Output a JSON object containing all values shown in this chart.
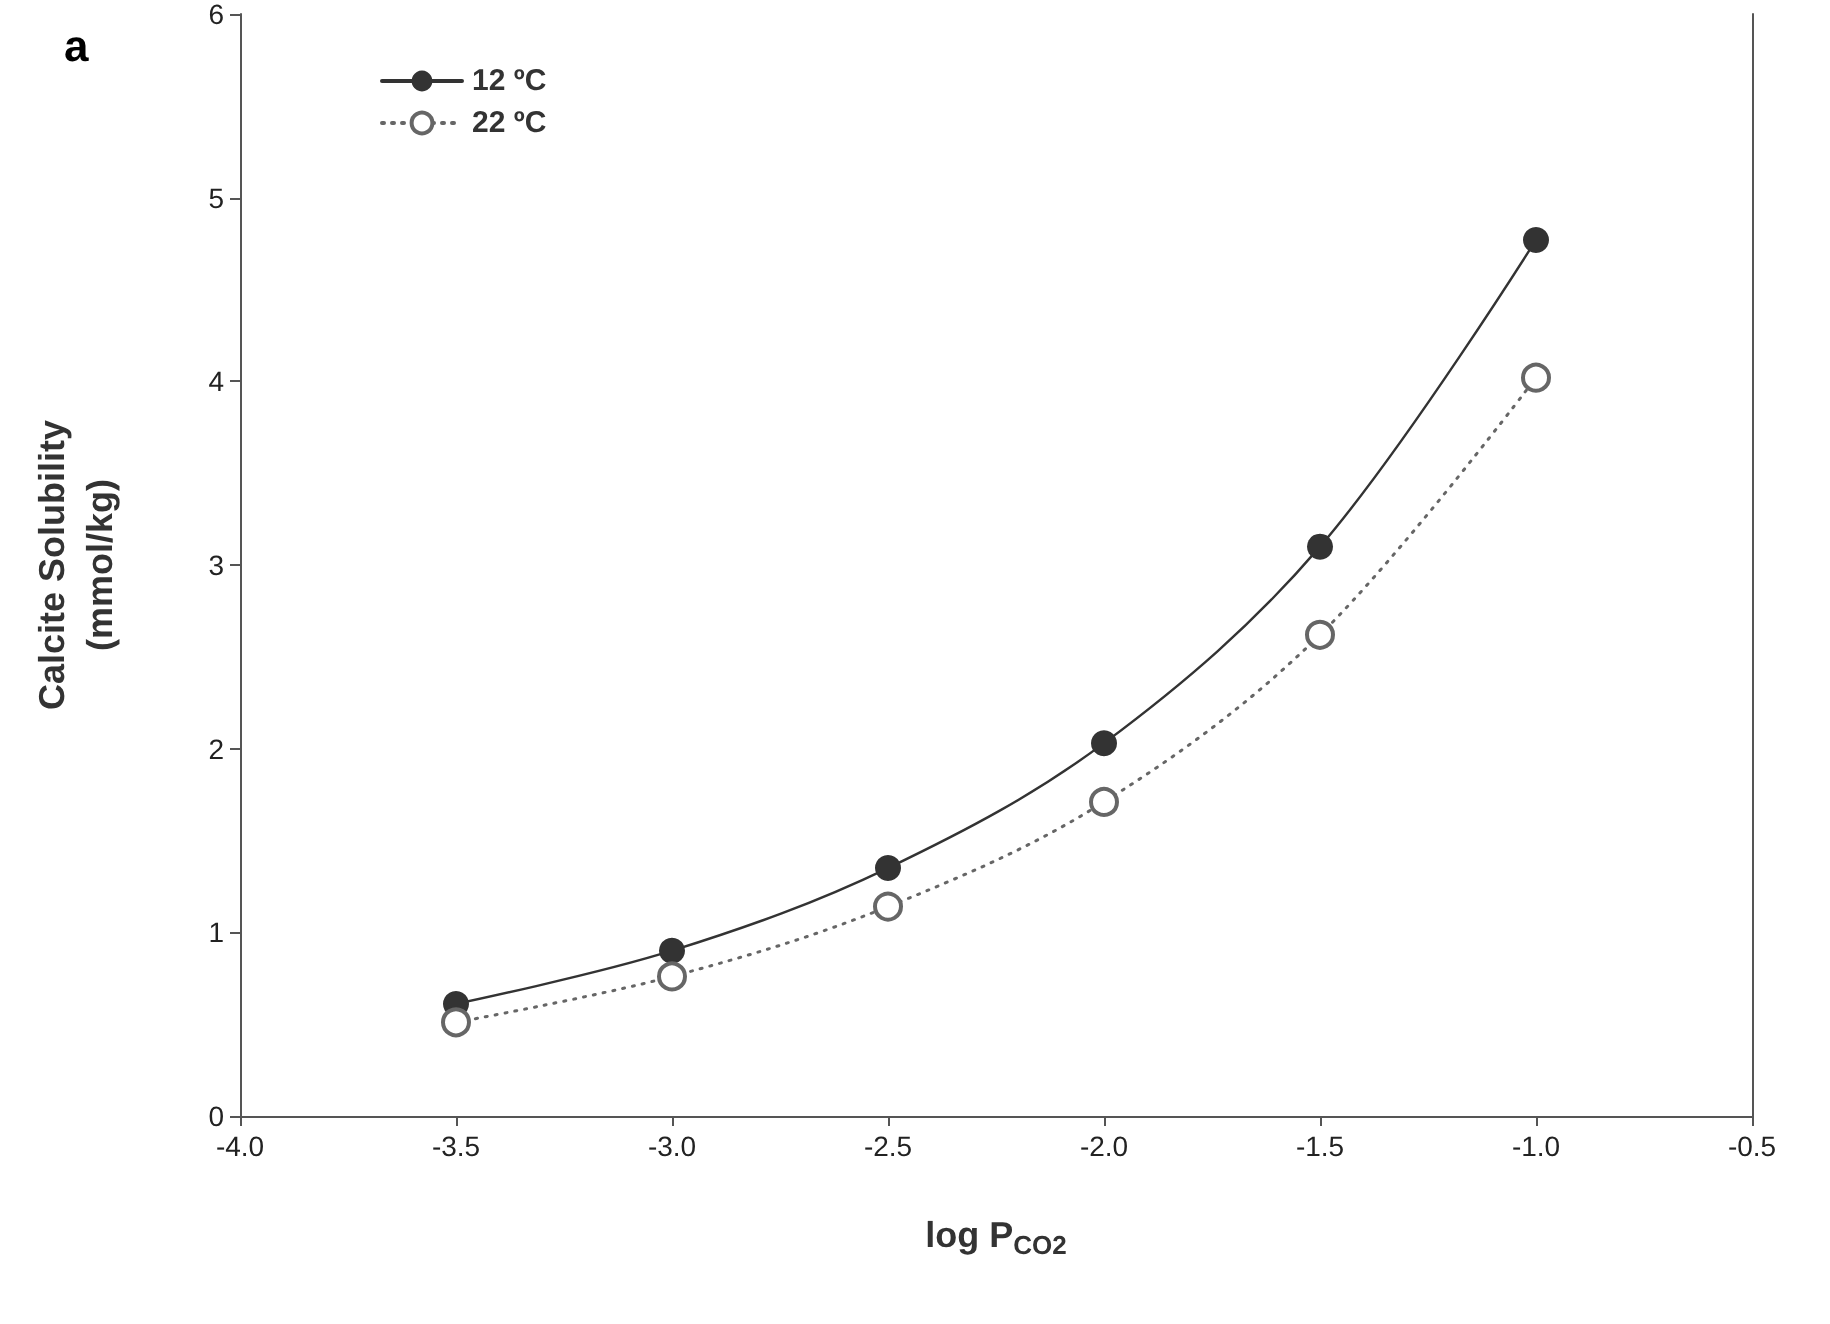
{
  "chart_data": {
    "type": "line",
    "xlabel": "log P$_{CO2}$",
    "ylabel": "Calcite Solubility\n(mmol/kg)",
    "annotations": [
      "a"
    ],
    "x": [
      -3.5,
      -3.0,
      -2.5,
      -2.0,
      -1.5,
      -1.0
    ],
    "series": [
      {
        "name": "12 ºC",
        "color": "#333333",
        "line_style": "solid",
        "values": [
          0.61,
          0.9,
          1.35,
          2.03,
          3.1,
          4.77
        ]
      },
      {
        "name": "22 ºC",
        "color": "#666666",
        "line_style": "dotted",
        "values": [
          0.51,
          0.76,
          1.14,
          1.71,
          2.62,
          4.02
        ]
      }
    ],
    "xlim": [
      -4.0,
      -0.5
    ],
    "xticks": [
      {
        "value": -4,
        "label": "-4.0"
      },
      {
        "value": -3.5,
        "label": "-3.5"
      },
      {
        "value": -3,
        "label": "-3.0"
      },
      {
        "value": -2.5,
        "label": "-2.5"
      },
      {
        "value": -2,
        "label": "-2.0"
      },
      {
        "value": -1.5,
        "label": "-1.5"
      },
      {
        "value": -1,
        "label": "-1.0"
      },
      {
        "value": -0.5,
        "label": "-0.5"
      }
    ],
    "ylim": [
      0,
      6
    ],
    "yticks": [
      0,
      1,
      2,
      3,
      4,
      5,
      6
    ],
    "grid": false,
    "legend": "top left",
    "marker": "circle"
  }
}
